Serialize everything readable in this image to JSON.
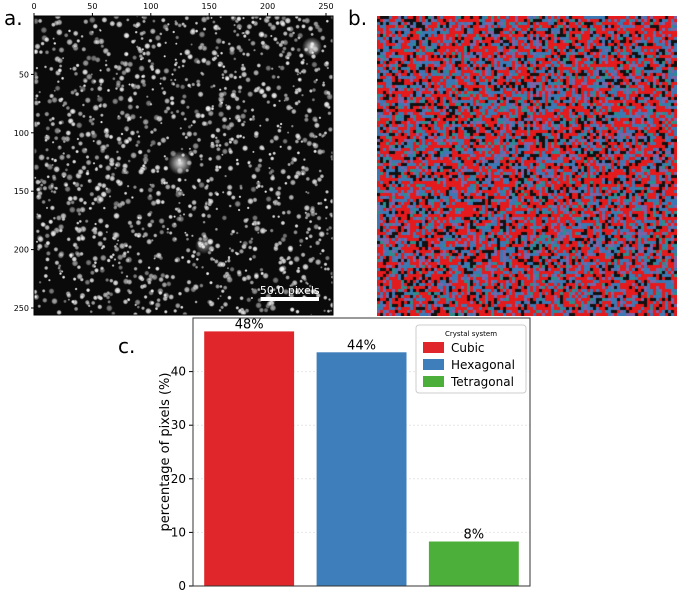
{
  "panels": {
    "a": "a.",
    "b": "b.",
    "c": "c."
  },
  "micrograph": {
    "x_ticks": [
      "0",
      "50",
      "100",
      "150",
      "200",
      "250"
    ],
    "y_ticks": [
      "50",
      "100",
      "150",
      "200",
      "250"
    ],
    "xlim": [
      0,
      256
    ],
    "ylim": [
      0,
      256
    ],
    "scale_bar_label": "50.0 pixels",
    "scale_bar_length_pixels": 50
  },
  "crystal_map": {
    "colors": [
      "#e41a1c",
      "#3b78b4",
      "#7b63a8",
      "#2a8f8a",
      "#111111"
    ]
  },
  "chart_data": {
    "type": "bar",
    "categories": [
      "Cubic",
      "Hexagonal",
      "Tetragonal"
    ],
    "values": [
      47.5,
      43.6,
      8.3
    ],
    "data_labels": [
      "48%",
      "44%",
      "8%"
    ],
    "colors": [
      "#e0262a",
      "#3e7ebb",
      "#4caf3a"
    ],
    "title": "",
    "xlabel": "",
    "ylabel": "percentage of pixels (%)",
    "ylim": [
      0,
      50
    ],
    "yticks": [
      0,
      10,
      20,
      30,
      40
    ],
    "grid": true,
    "legend": {
      "title": "Crystal system",
      "entries": [
        "Cubic",
        "Hexagonal",
        "Tetragonal"
      ],
      "placement": "top-right"
    }
  }
}
